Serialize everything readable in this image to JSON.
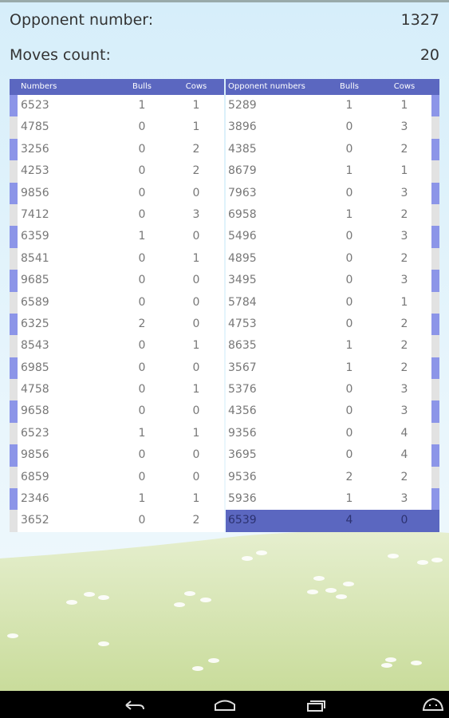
{
  "header": {
    "opponent_label": "Opponent number:",
    "opponent_value": "1327",
    "moves_label": "Moves count:",
    "moves_value": "20"
  },
  "my_table": {
    "columns": [
      "Numbers",
      "Bulls",
      "Cows"
    ],
    "rows": [
      [
        "6523",
        "1",
        "1"
      ],
      [
        "4785",
        "0",
        "1"
      ],
      [
        "3256",
        "0",
        "2"
      ],
      [
        "4253",
        "0",
        "2"
      ],
      [
        "9856",
        "0",
        "0"
      ],
      [
        "7412",
        "0",
        "3"
      ],
      [
        "6359",
        "1",
        "0"
      ],
      [
        "8541",
        "0",
        "1"
      ],
      [
        "9685",
        "0",
        "0"
      ],
      [
        "6589",
        "0",
        "0"
      ],
      [
        "6325",
        "2",
        "0"
      ],
      [
        "8543",
        "0",
        "1"
      ],
      [
        "6985",
        "0",
        "0"
      ],
      [
        "4758",
        "0",
        "1"
      ],
      [
        "9658",
        "0",
        "0"
      ],
      [
        "6523",
        "1",
        "1"
      ],
      [
        "9856",
        "0",
        "0"
      ],
      [
        "6859",
        "0",
        "0"
      ],
      [
        "2346",
        "1",
        "1"
      ],
      [
        "3652",
        "0",
        "2"
      ]
    ]
  },
  "opponent_table": {
    "columns": [
      "Opponent numbers",
      "Bulls",
      "Cows"
    ],
    "rows": [
      [
        "5289",
        "1",
        "1"
      ],
      [
        "3896",
        "0",
        "3"
      ],
      [
        "4385",
        "0",
        "2"
      ],
      [
        "8679",
        "1",
        "1"
      ],
      [
        "7963",
        "0",
        "3"
      ],
      [
        "6958",
        "1",
        "2"
      ],
      [
        "5496",
        "0",
        "3"
      ],
      [
        "4895",
        "0",
        "2"
      ],
      [
        "3495",
        "0",
        "3"
      ],
      [
        "5784",
        "0",
        "1"
      ],
      [
        "4753",
        "0",
        "2"
      ],
      [
        "8635",
        "1",
        "2"
      ],
      [
        "3567",
        "1",
        "2"
      ],
      [
        "5376",
        "0",
        "3"
      ],
      [
        "4356",
        "0",
        "3"
      ],
      [
        "9356",
        "0",
        "4"
      ],
      [
        "3695",
        "0",
        "4"
      ],
      [
        "9536",
        "2",
        "2"
      ],
      [
        "5936",
        "1",
        "3"
      ],
      [
        "6539",
        "4",
        "0"
      ]
    ]
  }
}
